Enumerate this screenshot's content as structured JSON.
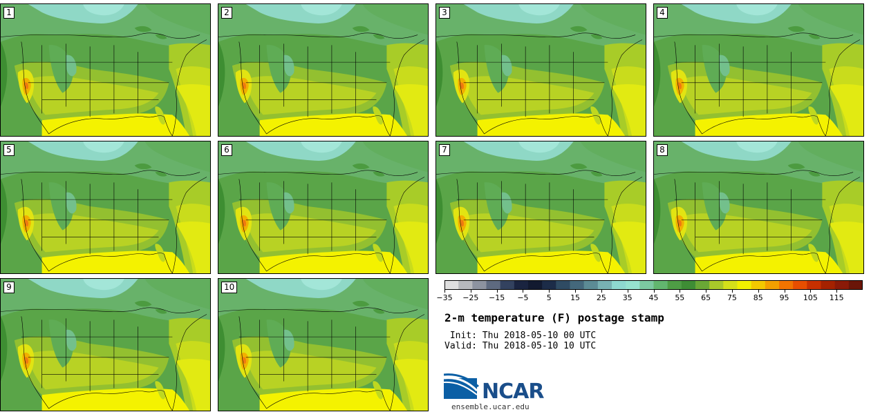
{
  "members": [
    "1",
    "2",
    "3",
    "4",
    "5",
    "6",
    "7",
    "8",
    "9",
    "10"
  ],
  "colorbar": {
    "colors": [
      "#dfdfdf",
      "#b7b9bd",
      "#8d93a0",
      "#5e6a80",
      "#33425f",
      "#1a2440",
      "#121a30",
      "#1c2c48",
      "#2f4b63",
      "#44687c",
      "#5c8b95",
      "#78b1b3",
      "#8ed8d0",
      "#96e2d0",
      "#7cc9a1",
      "#62b66f",
      "#4e9d45",
      "#3e8d35",
      "#6aa836",
      "#a9c82a",
      "#d4e01a",
      "#f0f000",
      "#f3c900",
      "#f3a000",
      "#f27400",
      "#e84e00",
      "#c83000",
      "#a52200",
      "#8a1a08",
      "#6a1508"
    ],
    "tick_labels": [
      "−35",
      "−25",
      "−15",
      "−5",
      "5",
      "15",
      "25",
      "35",
      "45",
      "55",
      "65",
      "75",
      "85",
      "95",
      "105",
      "115"
    ],
    "range": [
      -35,
      125
    ]
  },
  "title": "2-m temperature (F) postage stamp",
  "init_line": " Init: Thu 2018-05-10 00 UTC",
  "valid_line": "Valid: Thu 2018-05-10 10 UTC",
  "logo": {
    "name": "NCAR",
    "url": "ensemble.ucar.edu"
  }
}
